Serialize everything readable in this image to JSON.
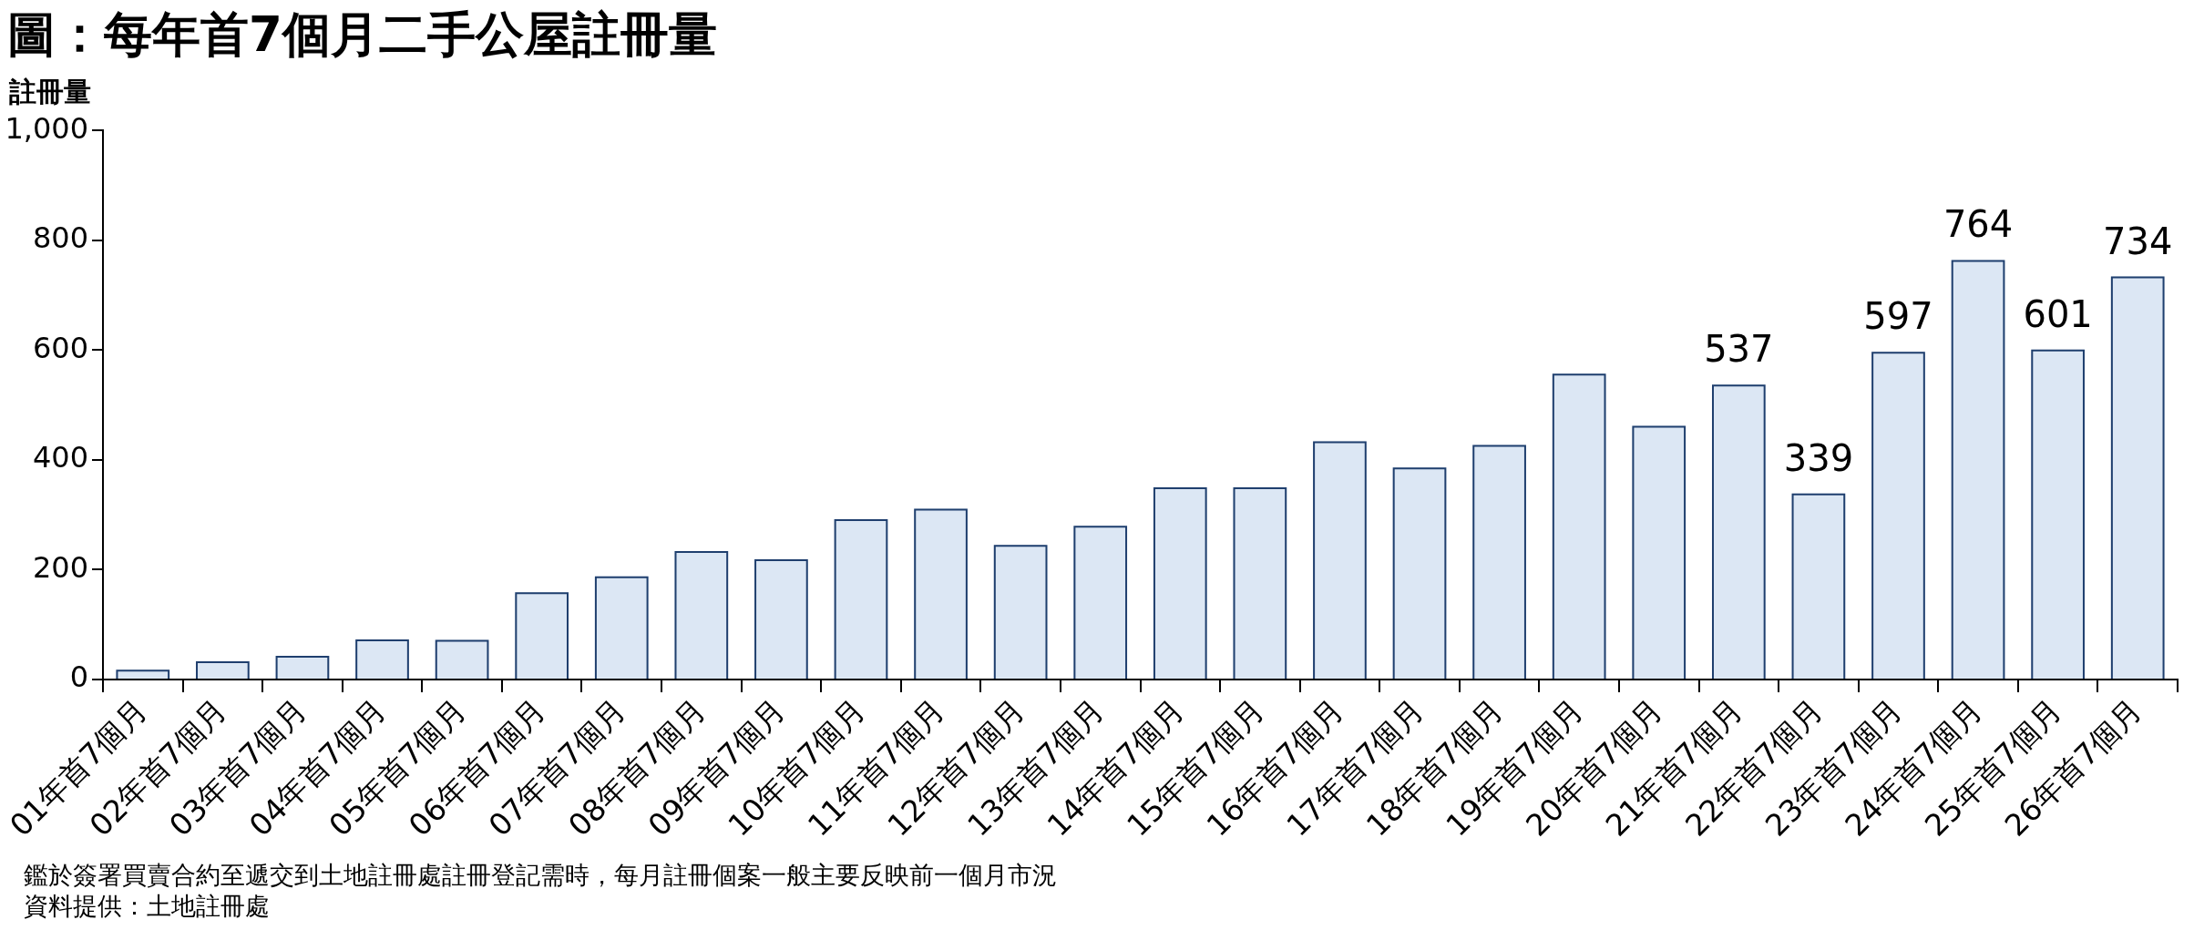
{
  "chart_data": {
    "type": "bar",
    "title": "圖：每年首7個月二手公屋註冊量",
    "ylabel": "註冊量",
    "categories": [
      "01年首7個月",
      "02年首7個月",
      "03年首7個月",
      "04年首7個月",
      "05年首7個月",
      "06年首7個月",
      "07年首7個月",
      "08年首7個月",
      "09年首7個月",
      "10年首7個月",
      "11年首7個月",
      "12年首7個月",
      "13年首7個月",
      "14年首7個月",
      "15年首7個月",
      "16年首7個月",
      "17年首7個月",
      "18年首7個月",
      "19年首7個月",
      "20年首7個月",
      "21年首7個月",
      "22年首7個月",
      "23年首7個月",
      "24年首7個月",
      "25年首7個月",
      "26年首7個月"
    ],
    "values": [
      18,
      33,
      43,
      73,
      72,
      159,
      188,
      234,
      219,
      292,
      311,
      245,
      280,
      350,
      350,
      434,
      386,
      427,
      557,
      462,
      537,
      339,
      597,
      764,
      601,
      734
    ],
    "value_labels": [
      null,
      null,
      null,
      null,
      null,
      null,
      null,
      null,
      null,
      null,
      null,
      null,
      null,
      null,
      null,
      null,
      null,
      null,
      null,
      null,
      "537",
      "339",
      "597",
      "764",
      "601",
      "734"
    ],
    "color": "#dce7f4",
    "ylim": [
      0,
      1000
    ],
    "yticks": [
      0,
      200,
      400,
      600,
      800,
      {
        "value": 1000,
        "label": "1,000"
      }
    ],
    "grid": false,
    "annotations": [
      "鑑於簽署買賣合約至遞交到土地註冊處註冊登記需時，每月註冊個案一般主要反映前一個月市況",
      "資料提供：土地註冊處"
    ]
  }
}
